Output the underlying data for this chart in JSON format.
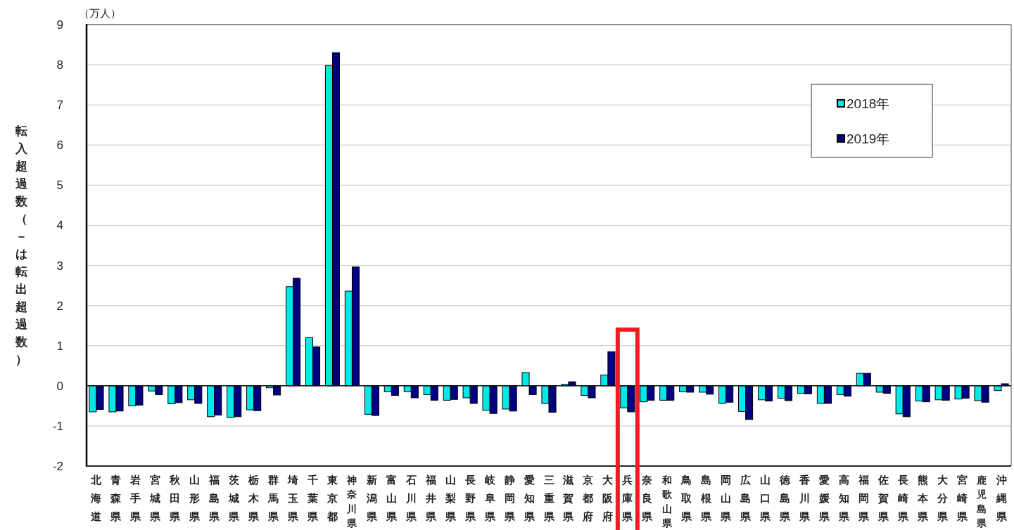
{
  "chart_data": {
    "type": "bar",
    "ylabel": "転入超過数（－は転出超過数）",
    "annotations": [
      "（万人）"
    ],
    "categories": [
      "北海道",
      "青森県",
      "岩手県",
      "宮城県",
      "秋田県",
      "山形県",
      "福島県",
      "茨城県",
      "栃木県",
      "群馬県",
      "埼玉県",
      "千葉県",
      "東京都",
      "神奈川県",
      "新潟県",
      "富山県",
      "石川県",
      "福井県",
      "山梨県",
      "長野県",
      "岐阜県",
      "静岡県",
      "愛知県",
      "三重県",
      "滋賀県",
      "京都府",
      "大阪府",
      "兵庫県",
      "奈良県",
      "和歌山県",
      "鳥取県",
      "島根県",
      "岡山県",
      "広島県",
      "山口県",
      "徳島県",
      "香川県",
      "愛媛県",
      "高知県",
      "福岡県",
      "佐賀県",
      "長崎県",
      "熊本県",
      "大分県",
      "宮崎県",
      "鹿児島県",
      "沖縄県"
    ],
    "series": [
      {
        "name": "2018年",
        "color": "#00e8e8",
        "values": [
          -0.65,
          -0.65,
          -0.5,
          -0.13,
          -0.45,
          -0.35,
          -0.77,
          -0.79,
          -0.6,
          -0.05,
          2.47,
          1.2,
          7.98,
          2.36,
          -0.71,
          -0.15,
          -0.15,
          -0.22,
          -0.36,
          -0.3,
          -0.61,
          -0.58,
          0.33,
          -0.44,
          0.04,
          -0.24,
          0.27,
          -0.55,
          -0.4,
          -0.36,
          -0.15,
          -0.16,
          -0.44,
          -0.64,
          -0.35,
          -0.31,
          -0.19,
          -0.44,
          -0.22,
          0.31,
          -0.16,
          -0.7,
          -0.38,
          -0.35,
          -0.33,
          -0.37,
          -0.12
        ]
      },
      {
        "name": "2019年",
        "color": "#000080",
        "values": [
          -0.59,
          -0.63,
          -0.48,
          -0.22,
          -0.42,
          -0.44,
          -0.73,
          -0.77,
          -0.62,
          -0.23,
          2.68,
          0.97,
          8.3,
          2.96,
          -0.74,
          -0.24,
          -0.3,
          -0.36,
          -0.34,
          -0.44,
          -0.69,
          -0.63,
          -0.22,
          -0.66,
          0.1,
          -0.3,
          0.85,
          -0.65,
          -0.36,
          -0.36,
          -0.16,
          -0.21,
          -0.41,
          -0.84,
          -0.38,
          -0.37,
          -0.2,
          -0.44,
          -0.26,
          0.31,
          -0.19,
          -0.77,
          -0.4,
          -0.36,
          -0.31,
          -0.41,
          0.05
        ]
      }
    ],
    "ylim": [
      -2,
      9
    ],
    "yticks": [
      -2,
      -1,
      0,
      1,
      2,
      3,
      4,
      5,
      6,
      7,
      8,
      9
    ],
    "grid": "y",
    "legend": "top right"
  }
}
